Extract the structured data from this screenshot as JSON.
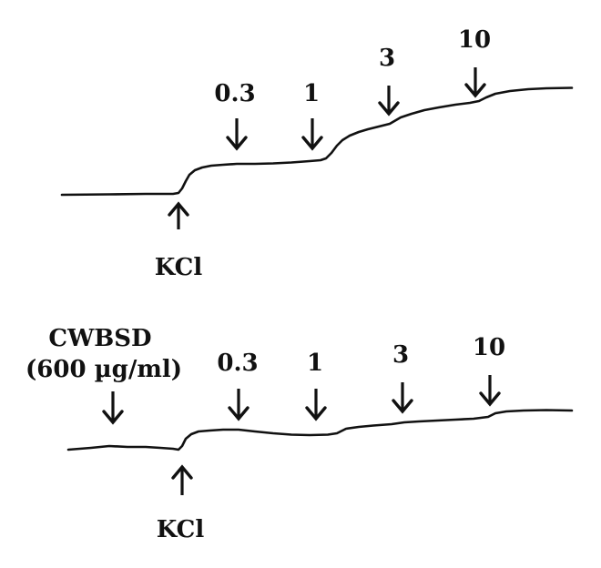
{
  "panel_top": {
    "stimulus_label": "KCl",
    "dose_labels": [
      "0.3",
      "1",
      "3",
      "10"
    ]
  },
  "panel_bottom": {
    "pretreatment_label_line1": "CWBSD",
    "pretreatment_label_line2": "(600 µg/ml)",
    "stimulus_label": "KCl",
    "dose_labels": [
      "0.3",
      "1",
      "3",
      "10"
    ]
  },
  "colors": {
    "trace": "#111111",
    "background": "#ffffff"
  }
}
